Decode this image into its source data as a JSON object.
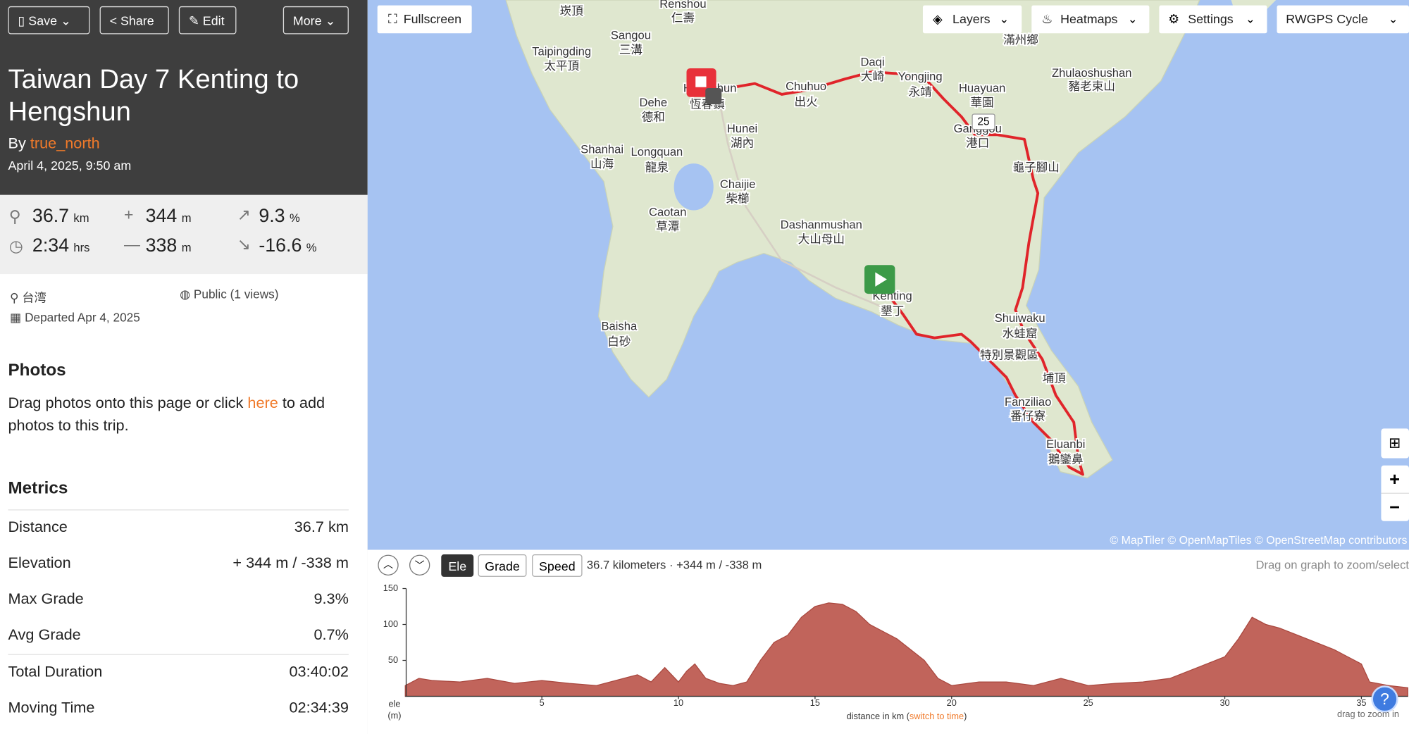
{
  "toolbar": {
    "buttons": [
      "Save",
      "Share",
      "Edit",
      "More"
    ]
  },
  "trip": {
    "title": "Taiwan Day 7 Kenting to Hengshun",
    "by": "By",
    "author": "true_north",
    "date": "April 4, 2025, 9:50 am"
  },
  "stats": {
    "distance": {
      "value": 36.7,
      "unit": "km"
    },
    "gain": {
      "value": 344,
      "unit": "m"
    },
    "max_grade": {
      "value": 9.3,
      "unit": "%"
    },
    "duration": {
      "value": "2:34",
      "unit": "hrs"
    },
    "loss": {
      "value": 338,
      "unit": "m"
    },
    "min_grade": {
      "value": -16.6,
      "unit": "%"
    }
  },
  "info": {
    "location": "台湾",
    "visibility": "Public (1 views)",
    "departed": "Departed Apr 4, 2025"
  },
  "photos": {
    "heading": "Photos",
    "text": [
      "Drag photos onto this page or click ",
      "here",
      " to add photos to this trip."
    ]
  },
  "metrics": {
    "heading": "Metrics",
    "rows": [
      [
        "Distance",
        "36.7 km"
      ],
      [
        "Elevation",
        "+ 344 m / -338 m"
      ],
      [
        "Max Grade",
        "9.3%"
      ],
      [
        "Avg Grade",
        "0.7%"
      ],
      [
        "Total Duration",
        "03:40:02"
      ],
      [
        "Moving Time",
        "02:34:39"
      ]
    ]
  },
  "map": {
    "buttons": [
      "Fullscreen",
      "Layers",
      "Heatmaps",
      "Settings",
      "RWGPS Cycle"
    ],
    "labels": [
      "崁頂",
      "Renshou",
      "仁壽",
      "Sangou",
      "三溝",
      "Taipingding",
      "太平頂",
      "Hengchun",
      "恆春鎮",
      "Dehe",
      "德和",
      "Chuhuo",
      "出火",
      "Daqi",
      "大崎",
      "Yongjing",
      "永靖",
      "Huayuan",
      "華園",
      "滿州鄉",
      "Zhulaoshushan",
      "豬老束山",
      "Ganggou",
      "港口",
      "龜子腳山",
      "Hunei",
      "湖內",
      "Shanhai",
      "山海",
      "Longquan",
      "龍泉",
      "Chaijie",
      "柴櫛",
      "Caotan",
      "草潭",
      "Dashanmushan",
      "大山母山",
      "Kenting",
      "墾丁",
      "Baisha",
      "白砂",
      "Shuiwaku",
      "水蛙窟",
      "特別景觀區",
      "埔頂",
      "Fanziliao",
      "番仔寮",
      "Eluanbi",
      "鵝鑾鼻"
    ],
    "road_shield": "25",
    "attribution": "© MapTiler © OpenMapTiles © OpenStreetMap contributors"
  },
  "elevation": {
    "tabs": [
      "Ele",
      "Grade",
      "Speed"
    ],
    "summary": "36.7 kilometers · +344 m / -338 m",
    "hint": "Drag on graph to zoom/select",
    "zoom_hint": "drag to zoom in"
  },
  "chart_data": {
    "type": "area",
    "color": "#c1645b",
    "x": [
      0,
      0.5,
      1,
      2,
      3,
      4,
      5,
      6,
      7,
      8,
      8.5,
      9,
      9.5,
      10,
      10.3,
      10.6,
      11,
      11.5,
      12,
      12.5,
      13,
      13.5,
      14,
      14.5,
      15,
      15.5,
      16,
      16.5,
      17,
      18,
      19,
      19.5,
      20,
      21,
      22,
      23,
      24,
      25,
      26,
      27,
      28,
      29,
      30,
      30.5,
      31,
      31.5,
      32,
      33,
      34,
      35,
      35.3,
      36,
      36.7
    ],
    "values": [
      15,
      25,
      22,
      20,
      25,
      18,
      22,
      18,
      15,
      25,
      30,
      20,
      40,
      20,
      35,
      45,
      25,
      18,
      15,
      20,
      50,
      75,
      85,
      110,
      125,
      130,
      128,
      118,
      100,
      80,
      50,
      25,
      15,
      20,
      20,
      15,
      25,
      15,
      18,
      20,
      25,
      40,
      55,
      80,
      110,
      100,
      95,
      80,
      65,
      45,
      20,
      15,
      12
    ],
    "xlim": [
      0,
      36.7
    ],
    "ylim": [
      0,
      150
    ],
    "xticks": [
      5,
      10,
      15,
      20,
      25,
      30,
      35
    ],
    "yticks": [
      50,
      100,
      150
    ],
    "ylabel": [
      "ele",
      "(m)"
    ],
    "xlabel": [
      "distance in km (",
      "switch to time",
      ")"
    ]
  }
}
